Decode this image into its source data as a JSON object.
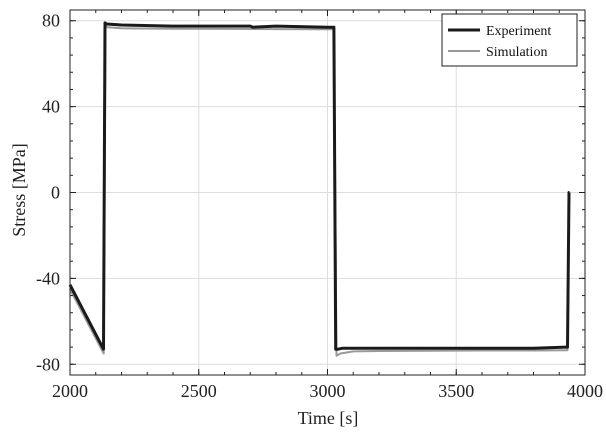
{
  "chart_data": {
    "type": "line",
    "xlabel": "Time [s]",
    "ylabel": "Stress [MPa]",
    "xlim": [
      2000,
      4000
    ],
    "ylim": [
      -85,
      85
    ],
    "xticks": [
      2000,
      2500,
      3000,
      3500,
      4000
    ],
    "yticks": [
      -80,
      -40,
      0,
      40,
      80
    ],
    "x_tick_labels": [
      "2000",
      "2500",
      "3000",
      "3500",
      "4000"
    ],
    "y_tick_labels": [
      "-80",
      "-40",
      "0",
      "40",
      "80"
    ],
    "grid": true,
    "legend_position": "top-right",
    "series": [
      {
        "name": "Experiment",
        "color": "#1a1a1a",
        "x": [
          2000,
          2130,
          2136,
          2142,
          2200,
          2400,
          2600,
          2700,
          2710,
          2800,
          3000,
          3025,
          3032,
          3040,
          3060,
          3200,
          3400,
          3600,
          3800,
          3925,
          3932,
          3938,
          3940
        ],
        "y": [
          -43,
          -73,
          79,
          78.5,
          78,
          77.5,
          77.5,
          77.5,
          77,
          77.5,
          77,
          77,
          -73,
          -73,
          -72.5,
          -72.5,
          -72.5,
          -72.5,
          -72.5,
          -72,
          -72,
          0,
          0
        ]
      },
      {
        "name": "Simulation",
        "color": "#999999",
        "x": [
          2000,
          2131,
          2138,
          2145,
          2200,
          2400,
          2600,
          2800,
          3000,
          3025,
          3035,
          3050,
          3100,
          3200,
          3400,
          3600,
          3800,
          3925,
          3932,
          3938,
          3940
        ],
        "y": [
          -45,
          -75,
          77.5,
          77,
          76.5,
          76.3,
          76.2,
          76.1,
          76,
          76,
          -76,
          -75,
          -74,
          -73.8,
          -73.7,
          -73.6,
          -73.6,
          -73.5,
          -73.5,
          0,
          0
        ]
      }
    ]
  }
}
